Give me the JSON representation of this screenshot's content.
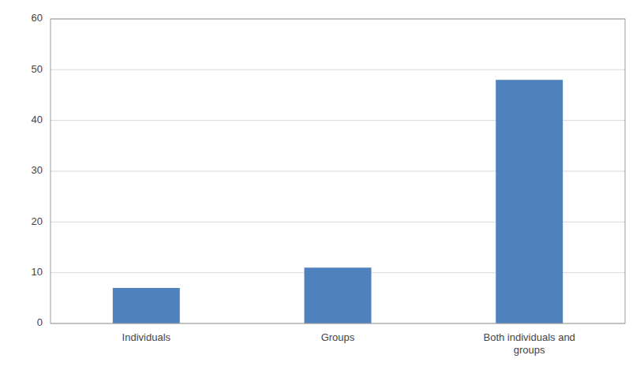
{
  "chart_data": {
    "type": "bar",
    "categories": [
      "Individuals",
      "Groups",
      "Both individuals and\ngroups"
    ],
    "values": [
      7,
      11,
      48
    ],
    "color": "#4F81BD",
    "ylim": [
      0,
      60
    ],
    "yticks": [
      0,
      10,
      20,
      30,
      40,
      50,
      60
    ],
    "grid": true
  }
}
